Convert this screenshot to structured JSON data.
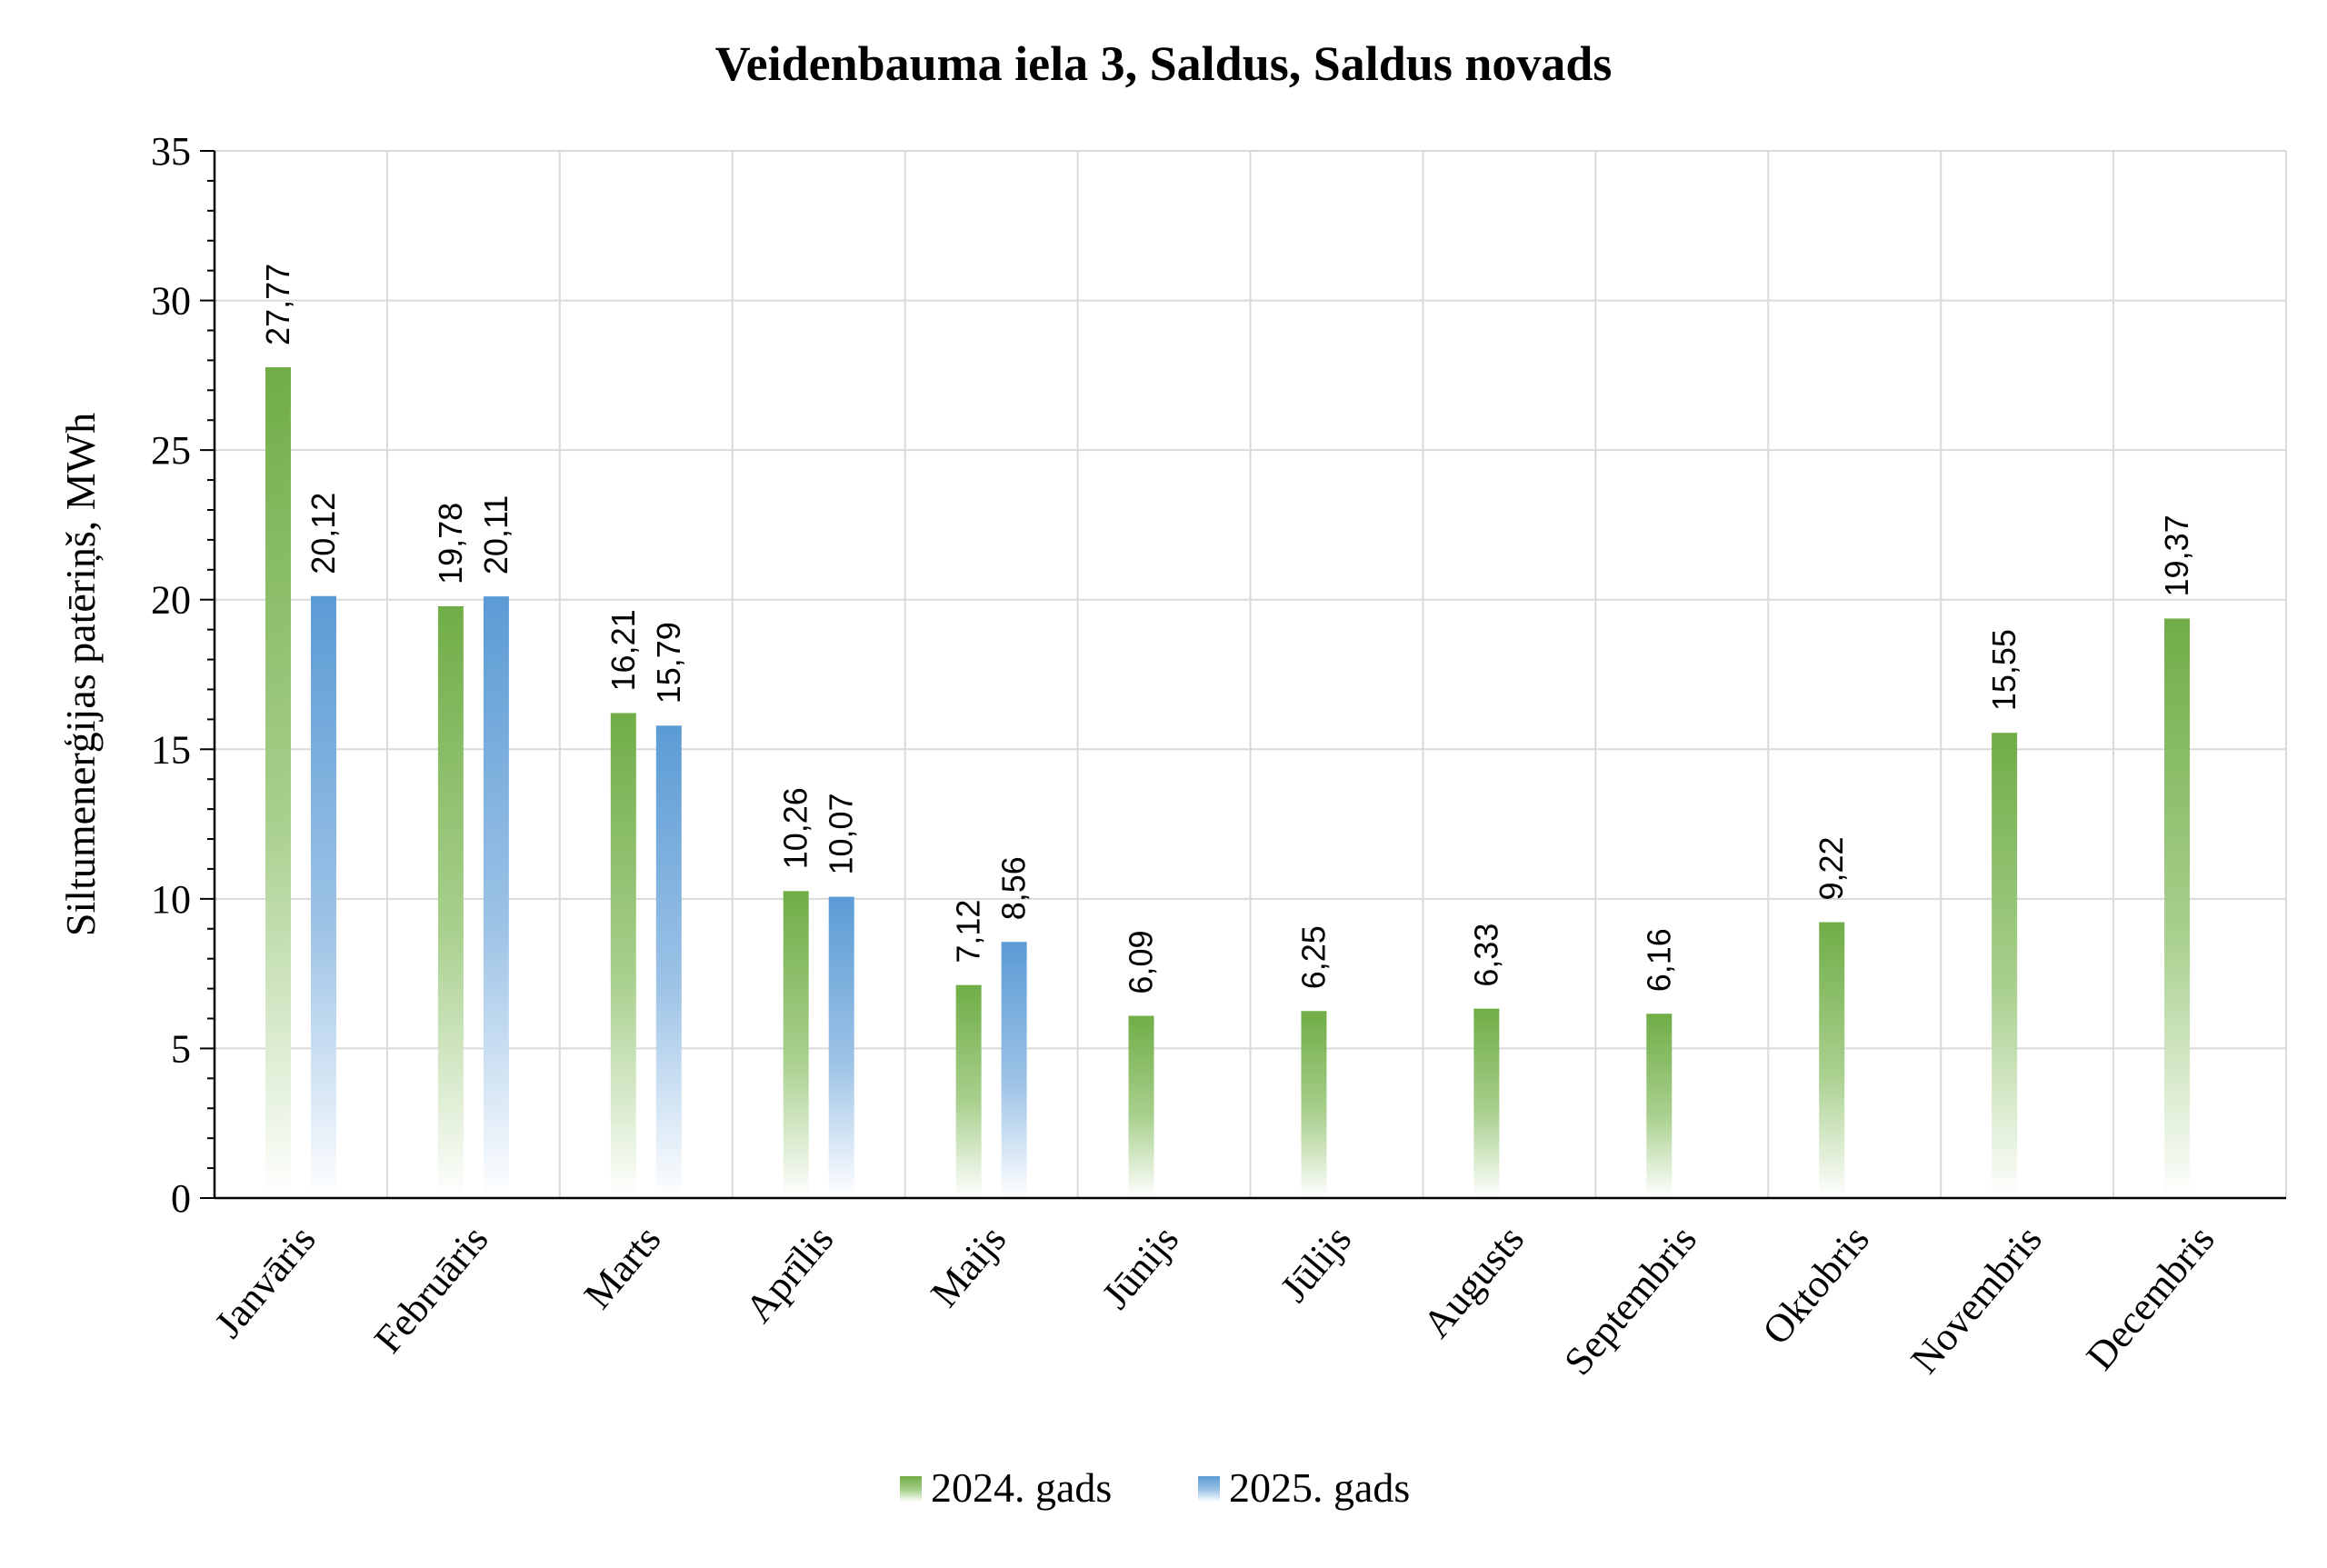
{
  "chart_data": {
    "type": "bar",
    "title": "Veidenbauma iela 3, Saldus, Saldus novads",
    "xlabel": "",
    "ylabel": "Siltumenerģijas patēriņš, MWh",
    "ylim": [
      0,
      35
    ],
    "yticks": [
      "0",
      "5",
      "10",
      "15",
      "20",
      "25",
      "30",
      "35"
    ],
    "categories": [
      "Janvāris",
      "Februāris",
      "Marts",
      "Aprīlis",
      "Maijs",
      "Jūnijs",
      "Jūlijs",
      "Augusts",
      "Septembris",
      "Oktobris",
      "Novembris",
      "Decembris"
    ],
    "series": [
      {
        "name": "2024. gads",
        "color": "#70ad47",
        "values": [
          27.77,
          19.78,
          16.21,
          10.26,
          7.12,
          6.09,
          6.25,
          6.33,
          6.16,
          9.22,
          15.55,
          19.37
        ],
        "labels": [
          "27,77",
          "19,78",
          "16,21",
          "10,26",
          "7,12",
          "6,09",
          "6,25",
          "6,33",
          "6,16",
          "9,22",
          "15,55",
          "19,37"
        ]
      },
      {
        "name": "2025. gads",
        "color": "#5b9bd5",
        "values": [
          20.12,
          20.11,
          15.79,
          10.07,
          8.56,
          null,
          null,
          null,
          null,
          null,
          null,
          null
        ],
        "labels": [
          "20,12",
          "20,11",
          "15,79",
          "10,07",
          "8,56",
          "",
          "",
          "",
          "",
          "",
          "",
          ""
        ]
      }
    ],
    "grid": true,
    "legend": "bottom-center"
  }
}
